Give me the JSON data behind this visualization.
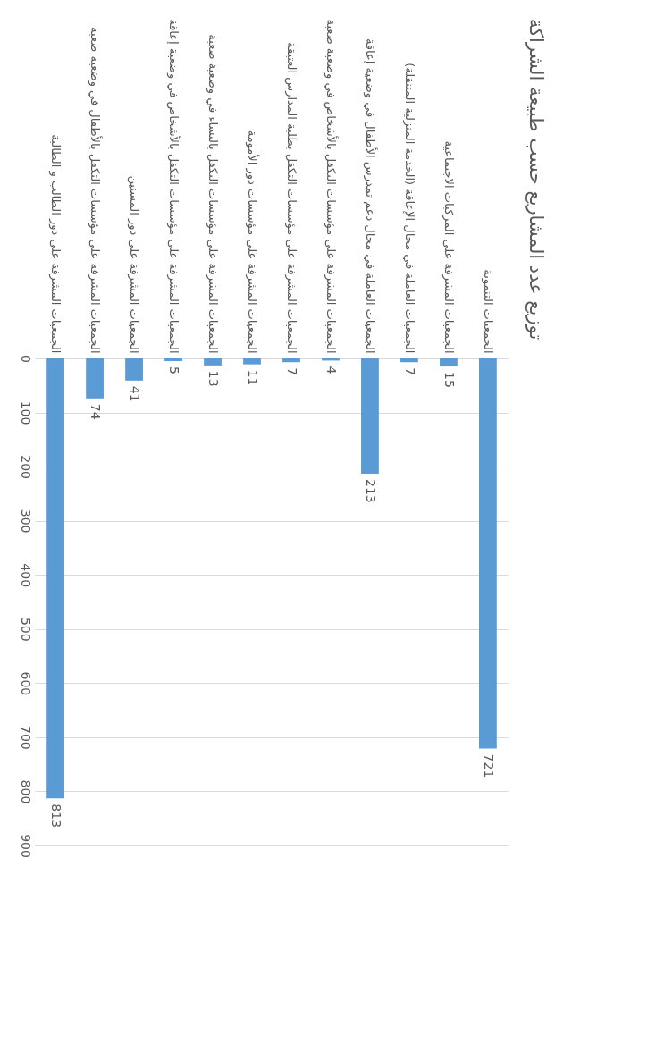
{
  "chart_data": {
    "type": "bar",
    "title": "توزيع عدد المشاريع حسب طبيعة الشراكة",
    "categories": [
      "الجمعيات المشرفة على دور الطالب و الطالبة",
      "الجمعيات المشرفة على مؤسسات التكفل بالأطفال في وضعية صعبة",
      "الجمعيات المشرفة على دور المسنين",
      "الجمعيات المشرفة على مؤسسات التكفل بالأشخاص في وضعية إعاقة",
      "الجمعيات المشرفة على مؤسسات التكفل بالنساء في وضعية صعبة",
      "الجمعيات المشرفة على مؤسسات دور الأمومة",
      "الجمعيات المشرفة على مؤسسات التكفل بطلبة المدارس العتيقة",
      "الجمعيات المشرفة على مؤسسات التكفل بالأشخاص في وضعية صعبة",
      "الجمعيات العاملة في مجال دعم تمدرس الأطفال في وضعية إعاقة",
      "الجمعيات العاملة في مجال الإعاقة (الخدمة المنزلية المتنقلة)",
      "الجمعيات المشرفة على المركبات الاجتماعية",
      "الجمعيات التنموية"
    ],
    "values": [
      813,
      74,
      41,
      5,
      13,
      11,
      7,
      4,
      213,
      7,
      15,
      721
    ],
    "color": "#5b9bd5",
    "ylim": [
      900,
      0
    ],
    "yticks": [
      0,
      100,
      200,
      300,
      400,
      500,
      600,
      700,
      800,
      900
    ],
    "grid": "y",
    "data_labels": true
  }
}
